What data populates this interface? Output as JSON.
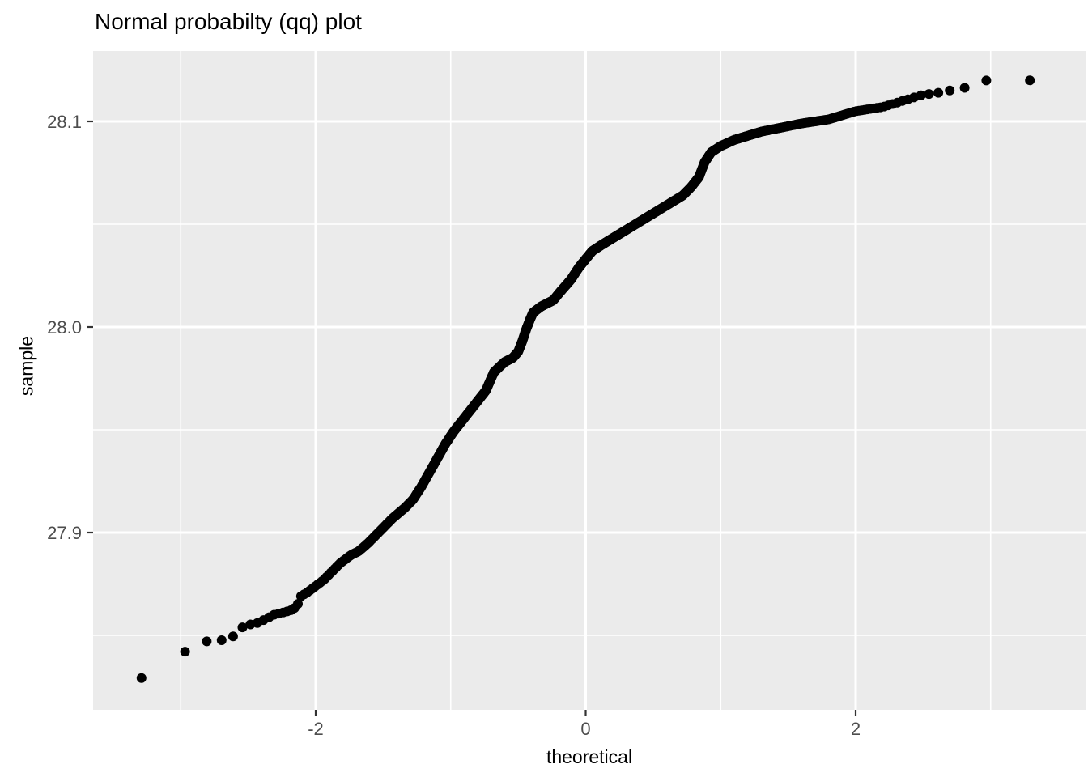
{
  "chart_data": {
    "type": "scatter",
    "title": "Normal probabilty (qq) plot",
    "xlabel": "theoretical",
    "ylabel": "sample",
    "xlim": [
      -3.65,
      3.71
    ],
    "ylim": [
      27.814,
      28.134
    ],
    "grid": "on",
    "legend": "none",
    "x_ticks": [
      {
        "value": -2,
        "label": "-2"
      },
      {
        "value": 0,
        "label": "0"
      },
      {
        "value": 2,
        "label": "2"
      }
    ],
    "x_minor_gridlines": [
      -3,
      -1,
      1,
      3
    ],
    "y_ticks": [
      {
        "value": 27.9,
        "label": "27.9"
      },
      {
        "value": 28.0,
        "label": "28.0"
      },
      {
        "value": 28.1,
        "label": "28.1"
      }
    ],
    "y_minor_gridlines": [
      27.85,
      27.95,
      28.05
    ],
    "n_points": 1000,
    "points_generation": "theoretical quantile t_i = probit((i-0.5)/n_points); sample value interpolated linearly from quantile_curve control points [theoretical, sample]",
    "quantile_curve": [
      [
        -3.32,
        27.828
      ],
      [
        -3.0,
        27.841
      ],
      [
        -2.82,
        27.847
      ],
      [
        -2.63,
        27.848
      ],
      [
        -2.57,
        27.853
      ],
      [
        -2.51,
        27.855
      ],
      [
        -2.43,
        27.856
      ],
      [
        -2.37,
        27.858
      ],
      [
        -2.31,
        27.86
      ],
      [
        -2.25,
        27.861
      ],
      [
        -2.19,
        27.862
      ],
      [
        -2.14,
        27.864
      ],
      [
        -2.11,
        27.869
      ],
      [
        -2.06,
        27.871
      ],
      [
        -2.0,
        27.874
      ],
      [
        -1.94,
        27.877
      ],
      [
        -1.88,
        27.881
      ],
      [
        -1.82,
        27.885
      ],
      [
        -1.74,
        27.889
      ],
      [
        -1.68,
        27.891
      ],
      [
        -1.61,
        27.895
      ],
      [
        -1.52,
        27.901
      ],
      [
        -1.43,
        27.907
      ],
      [
        -1.34,
        27.912
      ],
      [
        -1.28,
        27.916
      ],
      [
        -1.22,
        27.922
      ],
      [
        -1.16,
        27.929
      ],
      [
        -1.1,
        27.936
      ],
      [
        -1.04,
        27.943
      ],
      [
        -0.98,
        27.949
      ],
      [
        -0.92,
        27.954
      ],
      [
        -0.86,
        27.959
      ],
      [
        -0.8,
        27.964
      ],
      [
        -0.74,
        27.969
      ],
      [
        -0.68,
        27.978
      ],
      [
        -0.6,
        27.983
      ],
      [
        -0.54,
        27.985
      ],
      [
        -0.5,
        27.988
      ],
      [
        -0.47,
        27.993
      ],
      [
        -0.44,
        27.999
      ],
      [
        -0.41,
        28.004
      ],
      [
        -0.39,
        28.007
      ],
      [
        -0.33,
        28.01
      ],
      [
        -0.24,
        28.013
      ],
      [
        -0.19,
        28.017
      ],
      [
        -0.11,
        28.023
      ],
      [
        -0.05,
        28.029
      ],
      [
        0.0,
        28.033
      ],
      [
        0.05,
        28.037
      ],
      [
        0.12,
        28.04
      ],
      [
        0.22,
        28.044
      ],
      [
        0.32,
        28.048
      ],
      [
        0.42,
        28.052
      ],
      [
        0.52,
        28.056
      ],
      [
        0.62,
        28.06
      ],
      [
        0.72,
        28.064
      ],
      [
        0.78,
        28.068
      ],
      [
        0.84,
        28.073
      ],
      [
        0.88,
        28.08
      ],
      [
        0.93,
        28.085
      ],
      [
        1.0,
        28.088
      ],
      [
        1.1,
        28.091
      ],
      [
        1.2,
        28.093
      ],
      [
        1.3,
        28.095
      ],
      [
        1.45,
        28.097
      ],
      [
        1.6,
        28.099
      ],
      [
        1.8,
        28.101
      ],
      [
        2.0,
        28.105
      ],
      [
        2.2,
        28.107
      ],
      [
        2.35,
        28.11
      ],
      [
        2.5,
        28.113
      ],
      [
        2.62,
        28.114
      ],
      [
        2.76,
        28.116
      ],
      [
        2.9,
        28.117
      ],
      [
        2.97,
        28.12
      ],
      [
        3.32,
        28.12
      ]
    ],
    "marker_radius_px": 6,
    "colors": {
      "point": "#000000",
      "panel_bg": "#EBEBEB",
      "grid": "#FFFFFF",
      "tick": "#333333",
      "tick_label": "#4D4D4D",
      "axis_title": "#000000",
      "title": "#000000",
      "background": "#FFFFFF"
    }
  }
}
